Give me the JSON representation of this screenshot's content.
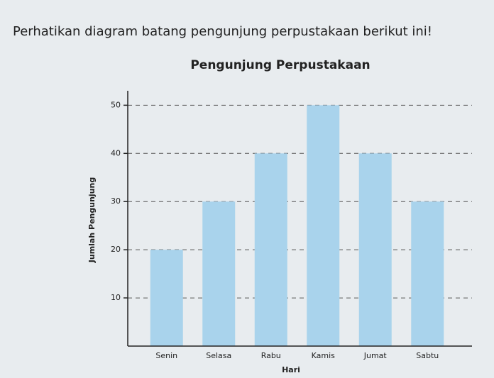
{
  "question": "Perhatikan diagram batang pengunjung perpustakaan berikut ini!",
  "chart_data": {
    "type": "bar",
    "title": "Pengunjung Perpustakaan",
    "x_label": "Hari",
    "y_label": "Jumlah Pengunjung",
    "categories": [
      "Senin",
      "Selasa",
      "Rabu",
      "Kamis",
      "Jumat",
      "Sabtu"
    ],
    "values": [
      20,
      30,
      40,
      50,
      40,
      30
    ],
    "color": "#a9d3ec",
    "ylim": [
      0,
      53
    ],
    "yticks": [
      10,
      20,
      30,
      40,
      50
    ],
    "grid": true
  }
}
